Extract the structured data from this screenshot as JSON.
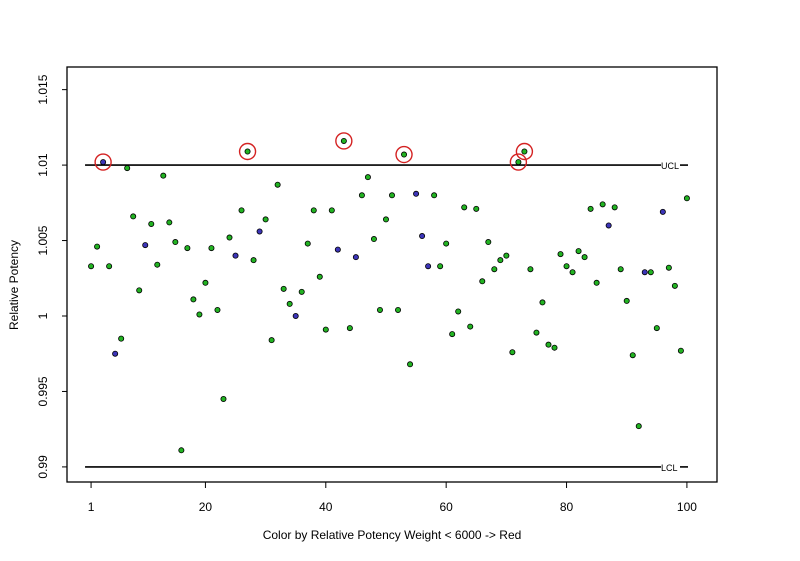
{
  "chart_data": {
    "type": "scatter",
    "title": "",
    "xlabel": "Color by Relative Potency Weight < 6000 -> Red",
    "ylabel": "Relative Potency",
    "xlim": [
      -3,
      105
    ],
    "ylim": [
      0.989,
      1.0165
    ],
    "x_ticks": [
      1,
      20,
      40,
      60,
      80,
      100
    ],
    "y_ticks": [
      0.99,
      0.995,
      1,
      1.005,
      1.01,
      1.015
    ],
    "grid": false,
    "control_limits": [
      {
        "label": "UCL",
        "value": 1.01
      },
      {
        "label": "LCL",
        "value": 0.99
      }
    ],
    "colors": {
      "green": "#22b322",
      "blue": "#3c35b8",
      "circle": "#d42222",
      "line": "#000000"
    },
    "points": [
      {
        "x": 1,
        "y": 1.0033,
        "c": "green"
      },
      {
        "x": 2,
        "y": 1.0046,
        "c": "green"
      },
      {
        "x": 3,
        "y": 1.0102,
        "c": "blue",
        "circled": true
      },
      {
        "x": 4,
        "y": 1.0033,
        "c": "green"
      },
      {
        "x": 5,
        "y": 0.9975,
        "c": "blue"
      },
      {
        "x": 6,
        "y": 0.9985,
        "c": "green"
      },
      {
        "x": 7,
        "y": 1.0098,
        "c": "green"
      },
      {
        "x": 8,
        "y": 1.0066,
        "c": "green"
      },
      {
        "x": 9,
        "y": 1.0017,
        "c": "green"
      },
      {
        "x": 10,
        "y": 1.0047,
        "c": "blue"
      },
      {
        "x": 11,
        "y": 1.0061,
        "c": "green"
      },
      {
        "x": 12,
        "y": 1.0034,
        "c": "green"
      },
      {
        "x": 13,
        "y": 1.0093,
        "c": "green"
      },
      {
        "x": 14,
        "y": 1.0062,
        "c": "green"
      },
      {
        "x": 15,
        "y": 1.0049,
        "c": "green"
      },
      {
        "x": 16,
        "y": 0.9911,
        "c": "green"
      },
      {
        "x": 17,
        "y": 1.0045,
        "c": "green"
      },
      {
        "x": 18,
        "y": 1.0011,
        "c": "green"
      },
      {
        "x": 19,
        "y": 1.0001,
        "c": "green"
      },
      {
        "x": 20,
        "y": 1.0022,
        "c": "green"
      },
      {
        "x": 21,
        "y": 1.0045,
        "c": "green"
      },
      {
        "x": 22,
        "y": 1.0004,
        "c": "green"
      },
      {
        "x": 23,
        "y": 0.9945,
        "c": "green"
      },
      {
        "x": 24,
        "y": 1.0052,
        "c": "green"
      },
      {
        "x": 25,
        "y": 1.004,
        "c": "blue"
      },
      {
        "x": 26,
        "y": 1.007,
        "c": "green"
      },
      {
        "x": 27,
        "y": 1.0109,
        "c": "green",
        "circled": true
      },
      {
        "x": 28,
        "y": 1.0037,
        "c": "green"
      },
      {
        "x": 29,
        "y": 1.0056,
        "c": "blue"
      },
      {
        "x": 30,
        "y": 1.0064,
        "c": "green"
      },
      {
        "x": 31,
        "y": 0.9984,
        "c": "green"
      },
      {
        "x": 32,
        "y": 1.0087,
        "c": "green"
      },
      {
        "x": 33,
        "y": 1.0018,
        "c": "green"
      },
      {
        "x": 34,
        "y": 1.0008,
        "c": "green"
      },
      {
        "x": 35,
        "y": 1.0,
        "c": "blue"
      },
      {
        "x": 36,
        "y": 1.0016,
        "c": "green"
      },
      {
        "x": 37,
        "y": 1.0048,
        "c": "green"
      },
      {
        "x": 38,
        "y": 1.007,
        "c": "green"
      },
      {
        "x": 39,
        "y": 1.0026,
        "c": "green"
      },
      {
        "x": 40,
        "y": 0.9991,
        "c": "green"
      },
      {
        "x": 41,
        "y": 1.007,
        "c": "green"
      },
      {
        "x": 42,
        "y": 1.0044,
        "c": "blue"
      },
      {
        "x": 43,
        "y": 1.0116,
        "c": "green",
        "circled": true
      },
      {
        "x": 44,
        "y": 0.9992,
        "c": "green"
      },
      {
        "x": 45,
        "y": 1.0039,
        "c": "blue"
      },
      {
        "x": 46,
        "y": 1.008,
        "c": "green"
      },
      {
        "x": 47,
        "y": 1.0092,
        "c": "green"
      },
      {
        "x": 48,
        "y": 1.0051,
        "c": "green"
      },
      {
        "x": 49,
        "y": 1.0004,
        "c": "green"
      },
      {
        "x": 50,
        "y": 1.0064,
        "c": "green"
      },
      {
        "x": 51,
        "y": 1.008,
        "c": "green"
      },
      {
        "x": 52,
        "y": 1.0004,
        "c": "green"
      },
      {
        "x": 53,
        "y": 1.0107,
        "c": "green",
        "circled": true
      },
      {
        "x": 54,
        "y": 0.9968,
        "c": "green"
      },
      {
        "x": 55,
        "y": 1.0081,
        "c": "blue"
      },
      {
        "x": 56,
        "y": 1.0053,
        "c": "blue"
      },
      {
        "x": 57,
        "y": 1.0033,
        "c": "blue"
      },
      {
        "x": 58,
        "y": 1.008,
        "c": "green"
      },
      {
        "x": 59,
        "y": 1.0033,
        "c": "green"
      },
      {
        "x": 60,
        "y": 1.0048,
        "c": "green"
      },
      {
        "x": 61,
        "y": 0.9988,
        "c": "green"
      },
      {
        "x": 62,
        "y": 1.0003,
        "c": "green"
      },
      {
        "x": 63,
        "y": 1.0072,
        "c": "green"
      },
      {
        "x": 64,
        "y": 0.9993,
        "c": "green"
      },
      {
        "x": 65,
        "y": 1.0071,
        "c": "green"
      },
      {
        "x": 66,
        "y": 1.0023,
        "c": "green"
      },
      {
        "x": 67,
        "y": 1.0049,
        "c": "green"
      },
      {
        "x": 68,
        "y": 1.0031,
        "c": "green"
      },
      {
        "x": 69,
        "y": 1.0037,
        "c": "green"
      },
      {
        "x": 70,
        "y": 1.004,
        "c": "green"
      },
      {
        "x": 71,
        "y": 0.9976,
        "c": "green"
      },
      {
        "x": 72,
        "y": 1.0102,
        "c": "green",
        "circled": true
      },
      {
        "x": 73,
        "y": 1.0109,
        "c": "green",
        "circled": true
      },
      {
        "x": 74,
        "y": 1.0031,
        "c": "green"
      },
      {
        "x": 75,
        "y": 0.9989,
        "c": "green"
      },
      {
        "x": 76,
        "y": 1.0009,
        "c": "green"
      },
      {
        "x": 77,
        "y": 0.9981,
        "c": "green"
      },
      {
        "x": 78,
        "y": 0.9979,
        "c": "green"
      },
      {
        "x": 79,
        "y": 1.0041,
        "c": "green"
      },
      {
        "x": 80,
        "y": 1.0033,
        "c": "green"
      },
      {
        "x": 81,
        "y": 1.0029,
        "c": "green"
      },
      {
        "x": 82,
        "y": 1.0043,
        "c": "green"
      },
      {
        "x": 83,
        "y": 1.0039,
        "c": "green"
      },
      {
        "x": 84,
        "y": 1.0071,
        "c": "green"
      },
      {
        "x": 85,
        "y": 1.0022,
        "c": "green"
      },
      {
        "x": 86,
        "y": 1.0074,
        "c": "green"
      },
      {
        "x": 87,
        "y": 1.006,
        "c": "blue"
      },
      {
        "x": 88,
        "y": 1.0072,
        "c": "green"
      },
      {
        "x": 89,
        "y": 1.0031,
        "c": "green"
      },
      {
        "x": 90,
        "y": 1.001,
        "c": "green"
      },
      {
        "x": 91,
        "y": 0.9974,
        "c": "green"
      },
      {
        "x": 92,
        "y": 0.9927,
        "c": "green"
      },
      {
        "x": 93,
        "y": 1.0029,
        "c": "blue"
      },
      {
        "x": 94,
        "y": 1.0029,
        "c": "green"
      },
      {
        "x": 95,
        "y": 0.9992,
        "c": "green"
      },
      {
        "x": 96,
        "y": 1.0069,
        "c": "blue"
      },
      {
        "x": 97,
        "y": 1.0032,
        "c": "green"
      },
      {
        "x": 98,
        "y": 1.002,
        "c": "green"
      },
      {
        "x": 99,
        "y": 0.9977,
        "c": "green"
      },
      {
        "x": 100,
        "y": 1.0078,
        "c": "green"
      }
    ]
  }
}
